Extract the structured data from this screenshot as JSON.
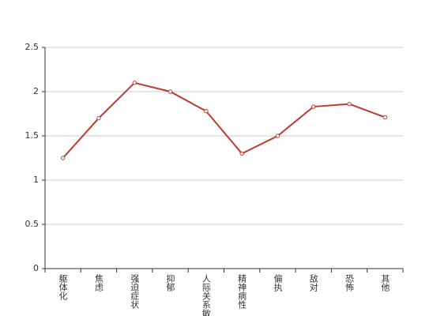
{
  "chart_data": {
    "type": "line",
    "categories": [
      "躯体化",
      "焦虑",
      "强迫症状",
      "抑郁",
      "人际关系敏感",
      "精神病性",
      "偏执",
      "敌对",
      "恐怖",
      "其他"
    ],
    "series": [
      {
        "color": "#c0392f",
        "values": [
          1.25,
          1.7,
          2.1,
          2.0,
          1.78,
          1.3,
          1.5,
          1.83,
          1.86,
          1.71
        ]
      }
    ],
    "ylim": [
      0,
      2.5
    ],
    "yticks": [
      0,
      0.5,
      1,
      1.5,
      2,
      2.5
    ],
    "grid": true
  }
}
